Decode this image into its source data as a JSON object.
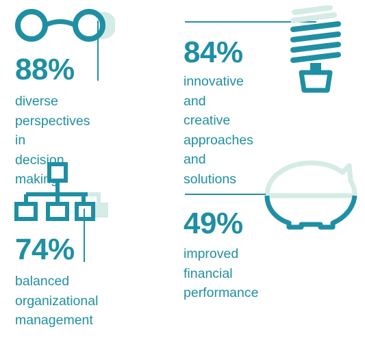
{
  "stats": [
    {
      "value": "88%",
      "label": "diverse\nperspectives in\ndecision making",
      "icon": "glasses-icon"
    },
    {
      "value": "84%",
      "label": "innovative\nand creative\napproaches\nand solutions",
      "icon": "lightbulb-icon"
    },
    {
      "value": "74%",
      "label": "balanced\norganizational\nmanagement",
      "icon": "org-chart-icon"
    },
    {
      "value": "49%",
      "label": "improved\nfinancial\nperformance",
      "icon": "piggy-bank-icon"
    }
  ],
  "colors": {
    "primary": "#1f8fa3",
    "light": "#d4ebe6"
  }
}
